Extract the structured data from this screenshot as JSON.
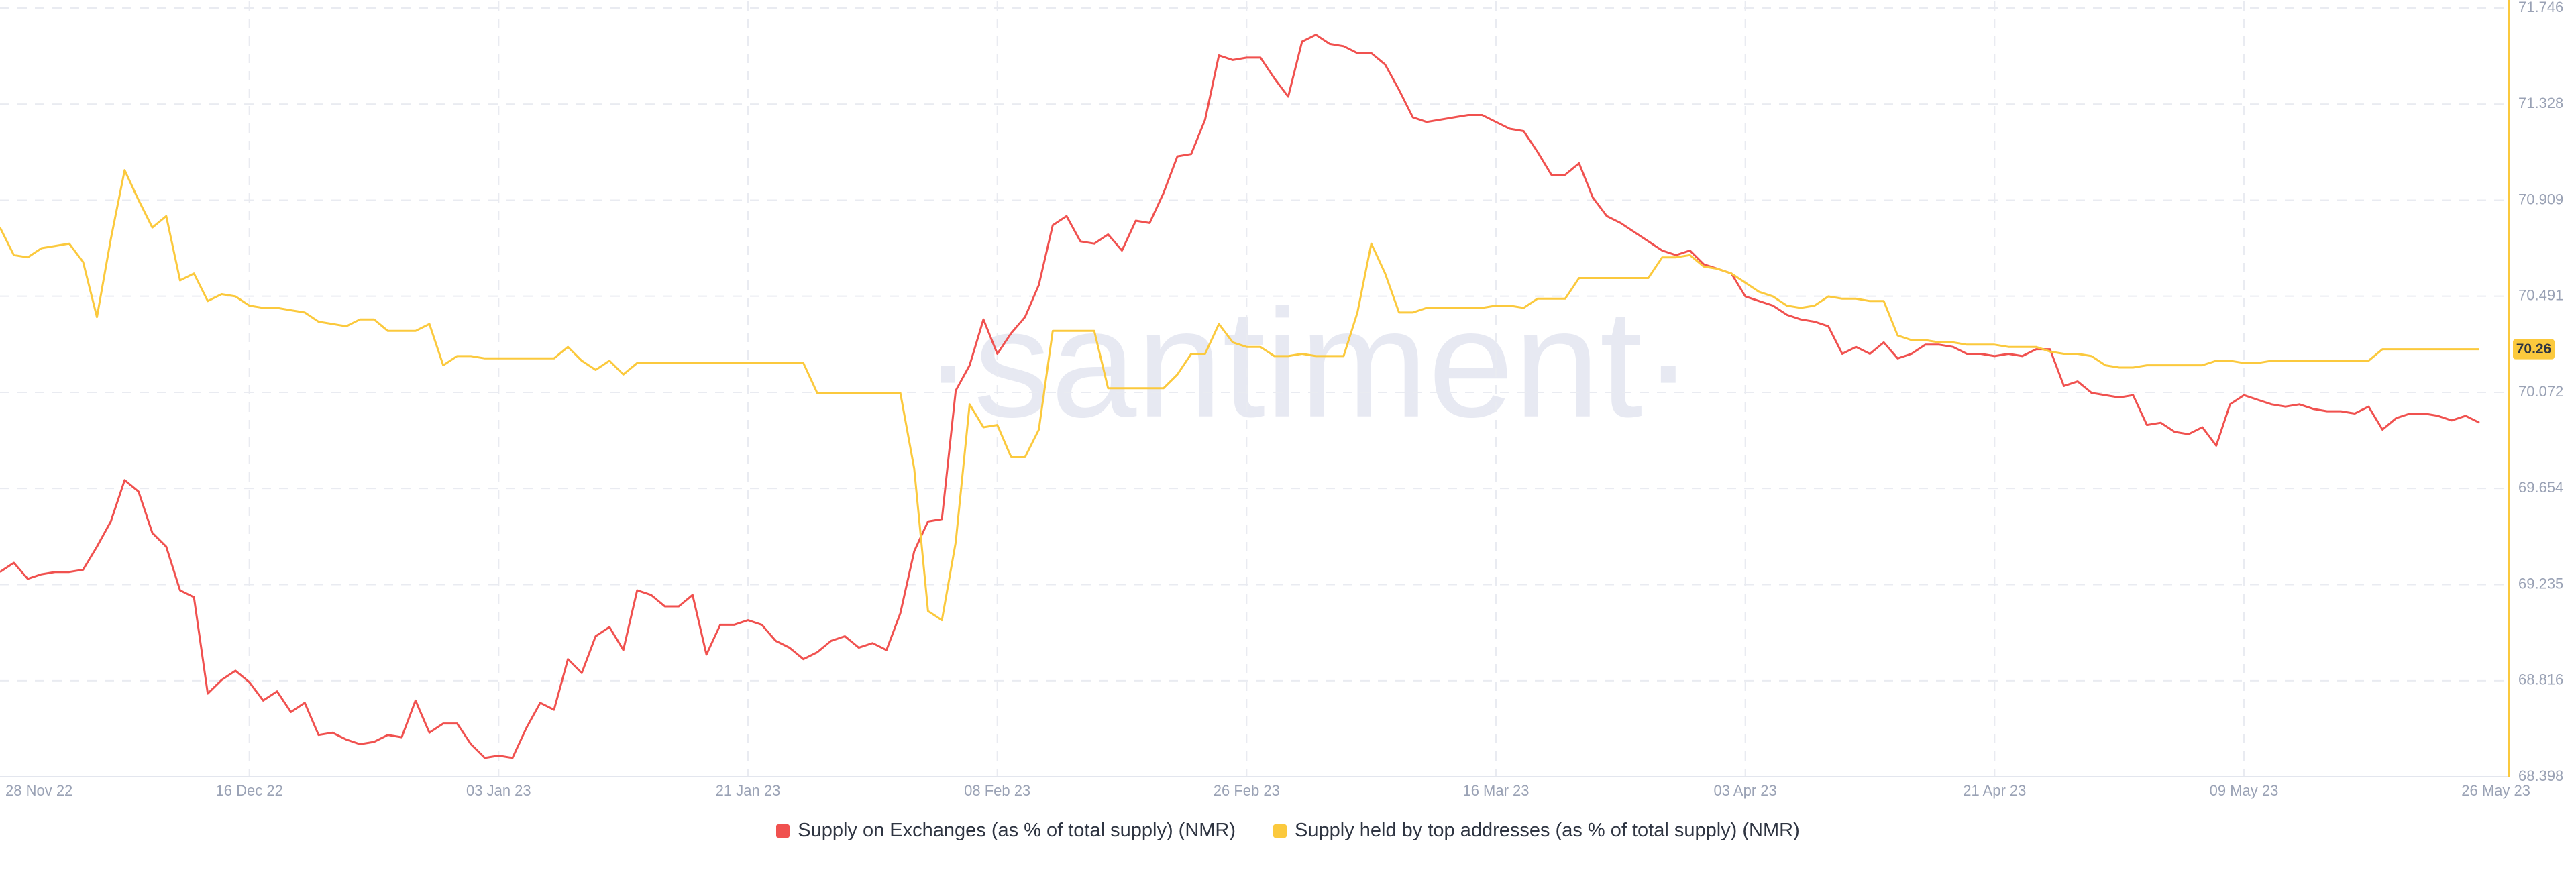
{
  "chart_data": {
    "type": "line",
    "watermark": "·santiment·",
    "x": [
      "2022-11-28",
      "2022-11-29",
      "2022-11-30",
      "2022-12-01",
      "2022-12-02",
      "2022-12-03",
      "2022-12-04",
      "2022-12-05",
      "2022-12-06",
      "2022-12-07",
      "2022-12-08",
      "2022-12-09",
      "2022-12-10",
      "2022-12-11",
      "2022-12-12",
      "2022-12-13",
      "2022-12-14",
      "2022-12-15",
      "2022-12-16",
      "2022-12-17",
      "2022-12-18",
      "2022-12-19",
      "2022-12-20",
      "2022-12-21",
      "2022-12-22",
      "2022-12-23",
      "2022-12-24",
      "2022-12-25",
      "2022-12-26",
      "2022-12-27",
      "2022-12-28",
      "2022-12-29",
      "2022-12-30",
      "2022-12-31",
      "2023-01-01",
      "2023-01-02",
      "2023-01-03",
      "2023-01-04",
      "2023-01-05",
      "2023-01-06",
      "2023-01-07",
      "2023-01-08",
      "2023-01-09",
      "2023-01-10",
      "2023-01-11",
      "2023-01-12",
      "2023-01-13",
      "2023-01-14",
      "2023-01-15",
      "2023-01-16",
      "2023-01-17",
      "2023-01-18",
      "2023-01-19",
      "2023-01-20",
      "2023-01-21",
      "2023-01-22",
      "2023-01-23",
      "2023-01-24",
      "2023-01-25",
      "2023-01-26",
      "2023-01-27",
      "2023-01-28",
      "2023-01-29",
      "2023-01-30",
      "2023-01-31",
      "2023-02-01",
      "2023-02-02",
      "2023-02-03",
      "2023-02-04",
      "2023-02-05",
      "2023-02-06",
      "2023-02-07",
      "2023-02-08",
      "2023-02-09",
      "2023-02-10",
      "2023-02-11",
      "2023-02-12",
      "2023-02-13",
      "2023-02-14",
      "2023-02-15",
      "2023-02-16",
      "2023-02-17",
      "2023-02-18",
      "2023-02-19",
      "2023-02-20",
      "2023-02-21",
      "2023-02-22",
      "2023-02-23",
      "2023-02-24",
      "2023-02-25",
      "2023-02-26",
      "2023-02-27",
      "2023-02-28",
      "2023-03-01",
      "2023-03-02",
      "2023-03-03",
      "2023-03-04",
      "2023-03-05",
      "2023-03-06",
      "2023-03-07",
      "2023-03-08",
      "2023-03-09",
      "2023-03-10",
      "2023-03-11",
      "2023-03-12",
      "2023-03-13",
      "2023-03-14",
      "2023-03-15",
      "2023-03-16",
      "2023-03-17",
      "2023-03-18",
      "2023-03-19",
      "2023-03-20",
      "2023-03-21",
      "2023-03-22",
      "2023-03-23",
      "2023-03-24",
      "2023-03-25",
      "2023-03-26",
      "2023-03-27",
      "2023-03-28",
      "2023-03-29",
      "2023-03-30",
      "2023-03-31",
      "2023-04-01",
      "2023-04-02",
      "2023-04-03",
      "2023-04-04",
      "2023-04-05",
      "2023-04-06",
      "2023-04-07",
      "2023-04-08",
      "2023-04-09",
      "2023-04-10",
      "2023-04-11",
      "2023-04-12",
      "2023-04-13",
      "2023-04-14",
      "2023-04-15",
      "2023-04-16",
      "2023-04-17",
      "2023-04-18",
      "2023-04-19",
      "2023-04-20",
      "2023-04-21",
      "2023-04-22",
      "2023-04-23",
      "2023-04-24",
      "2023-04-25",
      "2023-04-26",
      "2023-04-27",
      "2023-04-28",
      "2023-04-29",
      "2023-04-30",
      "2023-05-01",
      "2023-05-02",
      "2023-05-03",
      "2023-05-04",
      "2023-05-05",
      "2023-05-06",
      "2023-05-07",
      "2023-05-08",
      "2023-05-09",
      "2023-05-10",
      "2023-05-11",
      "2023-05-12",
      "2023-05-13",
      "2023-05-14",
      "2023-05-15",
      "2023-05-16",
      "2023-05-17",
      "2023-05-18",
      "2023-05-19",
      "2023-05-20",
      "2023-05-21",
      "2023-05-22",
      "2023-05-23",
      "2023-05-24",
      "2023-05-25",
      "2023-05-26"
    ],
    "series": [
      {
        "name": "Supply on Exchanges (as % of total supply) (NMR)",
        "color": "#f0514f",
        "values": [
          69.29,
          69.33,
          69.26,
          69.28,
          69.29,
          69.29,
          69.3,
          69.4,
          69.51,
          69.69,
          69.64,
          69.46,
          69.4,
          69.21,
          69.18,
          68.76,
          68.82,
          68.86,
          68.81,
          68.73,
          68.77,
          68.68,
          68.72,
          68.58,
          68.59,
          68.56,
          68.54,
          68.55,
          68.58,
          68.57,
          68.73,
          68.59,
          68.63,
          68.63,
          68.54,
          68.48,
          68.49,
          68.48,
          68.61,
          68.72,
          68.69,
          68.91,
          68.85,
          69.01,
          69.05,
          68.95,
          69.21,
          69.19,
          69.14,
          69.14,
          69.19,
          68.93,
          69.06,
          69.06,
          69.08,
          69.06,
          68.99,
          68.96,
          68.91,
          68.94,
          68.99,
          69.01,
          68.96,
          68.98,
          68.95,
          69.11,
          69.38,
          69.51,
          69.52,
          70.08,
          70.19,
          70.39,
          70.24,
          70.33,
          70.4,
          70.54,
          70.8,
          70.84,
          70.73,
          70.72,
          70.76,
          70.69,
          70.82,
          70.81,
          70.94,
          71.1,
          71.11,
          71.26,
          71.54,
          71.52,
          71.53,
          71.53,
          71.44,
          71.36,
          71.6,
          71.63,
          71.59,
          71.58,
          71.55,
          71.55,
          71.5,
          71.39,
          71.27,
          71.25,
          71.26,
          71.27,
          71.28,
          71.28,
          71.25,
          71.22,
          71.21,
          71.12,
          71.02,
          71.02,
          71.07,
          70.92,
          70.84,
          70.81,
          70.77,
          70.73,
          70.69,
          70.67,
          70.69,
          70.63,
          70.61,
          70.59,
          70.49,
          70.47,
          70.45,
          70.41,
          70.39,
          70.38,
          70.36,
          70.24,
          70.27,
          70.24,
          70.29,
          70.22,
          70.24,
          70.28,
          70.28,
          70.27,
          70.24,
          70.24,
          70.23,
          70.24,
          70.23,
          70.26,
          70.26,
          70.1,
          70.12,
          70.07,
          70.06,
          70.05,
          70.06,
          69.93,
          69.94,
          69.9,
          69.89,
          69.92,
          69.84,
          70.02,
          70.06,
          70.04,
          70.02,
          70.01,
          70.02,
          70.0,
          69.99,
          69.99,
          69.98,
          70.01,
          69.91,
          69.96,
          69.98,
          69.98,
          69.97,
          69.95,
          69.97,
          69.94
        ]
      },
      {
        "name": "Supply held by top addresses (as % of total supply) (NMR)",
        "color": "#fbc93d",
        "values": [
          70.79,
          70.67,
          70.66,
          70.7,
          70.71,
          70.72,
          70.64,
          70.4,
          70.74,
          71.04,
          70.91,
          70.79,
          70.84,
          70.56,
          70.59,
          70.47,
          70.5,
          70.49,
          70.45,
          70.44,
          70.44,
          70.43,
          70.42,
          70.38,
          70.37,
          70.36,
          70.39,
          70.39,
          70.34,
          70.34,
          70.34,
          70.37,
          70.19,
          70.23,
          70.23,
          70.22,
          70.22,
          70.22,
          70.22,
          70.22,
          70.22,
          70.27,
          70.21,
          70.17,
          70.21,
          70.15,
          70.2,
          70.2,
          70.2,
          70.2,
          70.2,
          70.2,
          70.2,
          70.2,
          70.2,
          70.2,
          70.2,
          70.2,
          70.2,
          70.07,
          70.07,
          70.07,
          70.07,
          70.07,
          70.07,
          70.07,
          69.74,
          69.12,
          69.08,
          69.42,
          70.02,
          69.92,
          69.93,
          69.79,
          69.79,
          69.91,
          70.34,
          70.34,
          70.34,
          70.34,
          70.09,
          70.09,
          70.09,
          70.09,
          70.09,
          70.15,
          70.24,
          70.24,
          70.37,
          70.29,
          70.27,
          70.27,
          70.23,
          70.23,
          70.24,
          70.23,
          70.23,
          70.23,
          70.42,
          70.72,
          70.59,
          70.42,
          70.42,
          70.44,
          70.44,
          70.44,
          70.44,
          70.44,
          70.45,
          70.45,
          70.44,
          70.48,
          70.48,
          70.48,
          70.57,
          70.57,
          70.57,
          70.57,
          70.57,
          70.57,
          70.66,
          70.66,
          70.67,
          70.62,
          70.61,
          70.59,
          70.55,
          70.51,
          70.49,
          70.45,
          70.44,
          70.45,
          70.49,
          70.48,
          70.48,
          70.47,
          70.47,
          70.32,
          70.3,
          70.3,
          70.29,
          70.29,
          70.28,
          70.28,
          70.28,
          70.27,
          70.27,
          70.27,
          70.25,
          70.24,
          70.24,
          70.23,
          70.19,
          70.18,
          70.18,
          70.19,
          70.19,
          70.19,
          70.19,
          70.19,
          70.21,
          70.21,
          70.2,
          70.2,
          70.21,
          70.21,
          70.21,
          70.21,
          70.21,
          70.21,
          70.21,
          70.21,
          70.26,
          70.26,
          70.26,
          70.26,
          70.26,
          70.26,
          70.26,
          70.26
        ]
      }
    ],
    "xlim": [
      "2022-11-28",
      "2023-05-26"
    ],
    "xticks": [
      {
        "value": "2022-11-28",
        "label": "28 Nov 22"
      },
      {
        "value": "2022-12-16",
        "label": "16 Dec 22"
      },
      {
        "value": "2023-01-03",
        "label": "03 Jan 23"
      },
      {
        "value": "2023-01-21",
        "label": "21 Jan 23"
      },
      {
        "value": "2023-02-08",
        "label": "08 Feb 23"
      },
      {
        "value": "2023-02-26",
        "label": "26 Feb 23"
      },
      {
        "value": "2023-03-16",
        "label": "16 Mar 23"
      },
      {
        "value": "2023-04-03",
        "label": "03 Apr 23"
      },
      {
        "value": "2023-04-21",
        "label": "21 Apr 23"
      },
      {
        "value": "2023-05-09",
        "label": "09 May 23"
      },
      {
        "value": "2023-05-26",
        "label": "26 May 23"
      }
    ],
    "ylim": [
      68.398,
      71.746
    ],
    "yticks": [
      68.398,
      68.816,
      69.235,
      69.654,
      70.072,
      70.491,
      70.909,
      71.328,
      71.746
    ],
    "y_axis_side": "right",
    "grid": true,
    "legend_position": "bottom"
  }
}
